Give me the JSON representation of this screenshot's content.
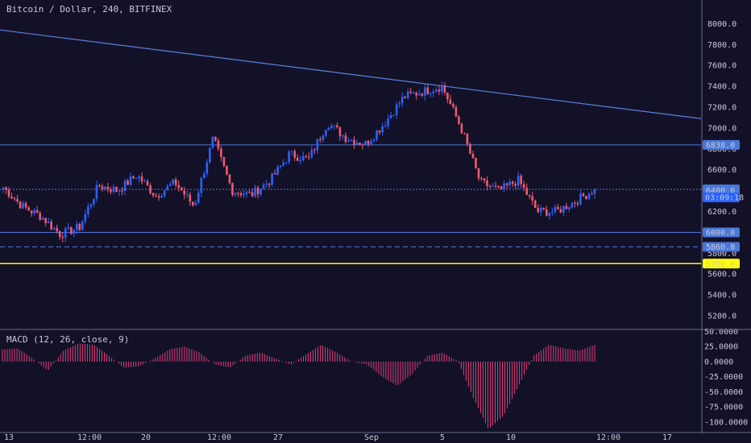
{
  "header": {
    "title": "Bitcoin / Dollar, 240, BITFINEX"
  },
  "colors": {
    "background": "#131128",
    "up": "#2962ff",
    "down": "#ef5a6f",
    "histogram": "#e0417a",
    "trendline": "#5b7fe0",
    "hline": "#4a78d8",
    "support": "#ffff00",
    "grid_border": "#6a6a88"
  },
  "chart_data": [
    {
      "type": "candlestick",
      "title": "Bitcoin / Dollar, 240, BITFINEX",
      "ylim": [
        5100,
        8150
      ],
      "y_ticks": [
        "8000.0",
        "7800.0",
        "7600.0",
        "7400.0",
        "7200.0",
        "7000.0",
        "6800.0",
        "6600.0",
        "6200.0",
        "5800.0",
        "5600.0",
        "5400.0",
        "5200.0"
      ],
      "x_ticks": [
        "13",
        "12:00",
        "20",
        "12:00",
        "27",
        "Sep",
        "5",
        "10",
        "12:00",
        "17"
      ],
      "price_lines": [
        {
          "label": "6838.0",
          "value": 6838,
          "color": "#4a78d8",
          "style": "solid"
        },
        {
          "label": "6411.6",
          "value": 6411.6,
          "color": "#4a78d8",
          "style": "dotted"
        },
        {
          "label": "6400.0",
          "value": 6400,
          "color": "#4a78d8",
          "style": "solid"
        },
        {
          "label": "6000.0",
          "value": 6000,
          "color": "#4a78d8",
          "style": "solid"
        },
        {
          "label": "5860.8",
          "value": 5860.8,
          "color": "#4a78d8",
          "style": "dashed"
        },
        {
          "label": "5700.0",
          "value": 5700,
          "color": "#ffff00",
          "style": "solid"
        }
      ],
      "countdown": "03:09:18",
      "trendline": [
        {
          "x": 0,
          "y": 7940
        },
        {
          "x": 1,
          "y": 7090
        }
      ],
      "key_closes": [
        6430,
        6250,
        6150,
        5980,
        6050,
        6450,
        6400,
        6550,
        6350,
        6480,
        6250,
        6900,
        6400,
        6360,
        6500,
        6750,
        6700,
        7050,
        6900,
        6850,
        7050,
        7300,
        7350,
        7400,
        7000,
        6480,
        6400,
        6500,
        6200,
        6200,
        6300,
        6411.6
      ]
    },
    {
      "type": "bar",
      "title": "MACD (12, 26, close, 9)",
      "ylim": [
        -115,
        52
      ],
      "y_ticks": [
        "50.0000",
        "25.0000",
        "0.0000",
        "-25.0000",
        "-50.0000",
        "-75.0000",
        "-100.0000"
      ],
      "key_values": [
        20,
        22,
        5,
        -15,
        18,
        30,
        28,
        10,
        -10,
        -8,
        5,
        20,
        25,
        15,
        -5,
        -10,
        10,
        15,
        5,
        -5,
        12,
        28,
        15,
        0,
        -5,
        -25,
        -40,
        -20,
        10,
        15,
        0,
        -60,
        -112,
        -90,
        -40,
        10,
        28,
        22,
        18,
        28
      ]
    }
  ]
}
